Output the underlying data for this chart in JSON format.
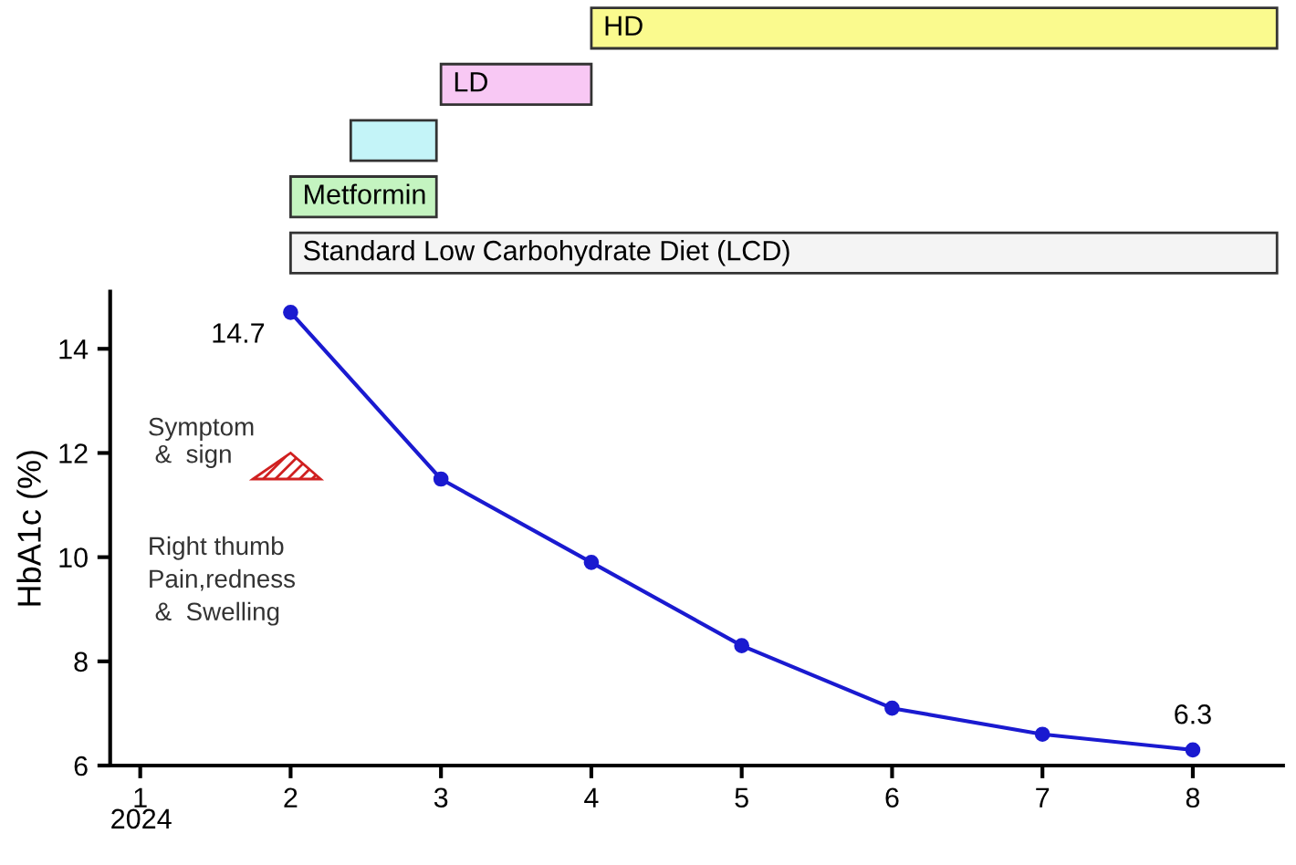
{
  "chart_data": [
    {
      "type": "bar",
      "orientation": "horizontal",
      "categories": [
        "HD",
        "LD",
        null,
        "Metformin",
        "Standard Low Carbohydrate Diet (LCD)"
      ],
      "base": [
        4.0,
        3.0,
        2.4,
        2.0,
        2.0
      ],
      "values": [
        4.56,
        1.0,
        0.57,
        0.97,
        6.56
      ],
      "colors": [
        "#fafa8e",
        "#f8c8f4",
        "#c4f4f8",
        "#c4f4c0",
        "#f4f4f4"
      ],
      "xlim": [
        1,
        8.6
      ],
      "xticks": [
        1,
        2,
        3,
        4,
        5,
        6,
        7,
        8
      ],
      "tick_labels": false
    },
    {
      "type": "line",
      "ylabel": "HbA1c (%)",
      "x": [
        2,
        3,
        4,
        5,
        6,
        7,
        8
      ],
      "series": [
        {
          "color": "#1a1ad0",
          "values": [
            14.7,
            11.5,
            9.9,
            8.3,
            7.1,
            6.6,
            6.3
          ],
          "value_labels": [
            "14.7",
            null,
            null,
            null,
            null,
            null,
            "6.3"
          ]
        }
      ],
      "marker": "circle",
      "line_style": "solid",
      "xlim": [
        0.8,
        8.6
      ],
      "xticks": [
        1,
        2,
        3,
        4,
        5,
        6,
        7,
        8
      ],
      "ylim": [
        6,
        15.1
      ],
      "yticks": [
        6,
        8,
        10,
        12,
        14
      ],
      "annotations": [
        "2024",
        "Symptom\n &  sign",
        "Right thumb\nPain,redness\n &  Swelling"
      ]
    }
  ]
}
